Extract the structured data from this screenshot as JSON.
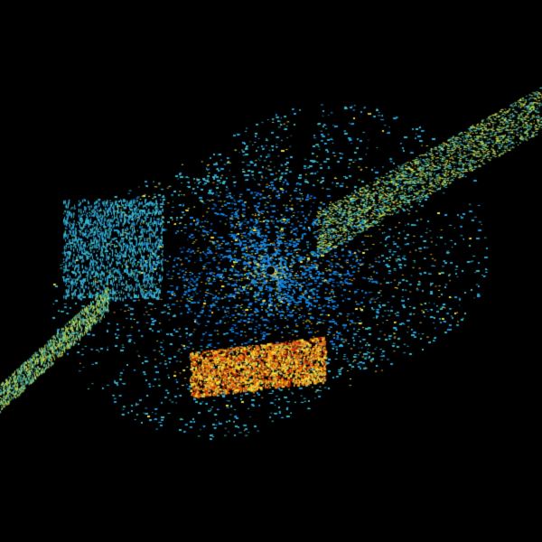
{
  "map": {
    "type": "radar-reflectivity",
    "background": "#000000",
    "palette": [
      "#0b5fb8",
      "#1683d6",
      "#2aa0d8",
      "#3cb8c8",
      "#5cc8a8",
      "#b8e050",
      "#f0e040",
      "#f0a020",
      "#e06010",
      "#c02008"
    ],
    "site_marker": "radar-site-dot"
  }
}
